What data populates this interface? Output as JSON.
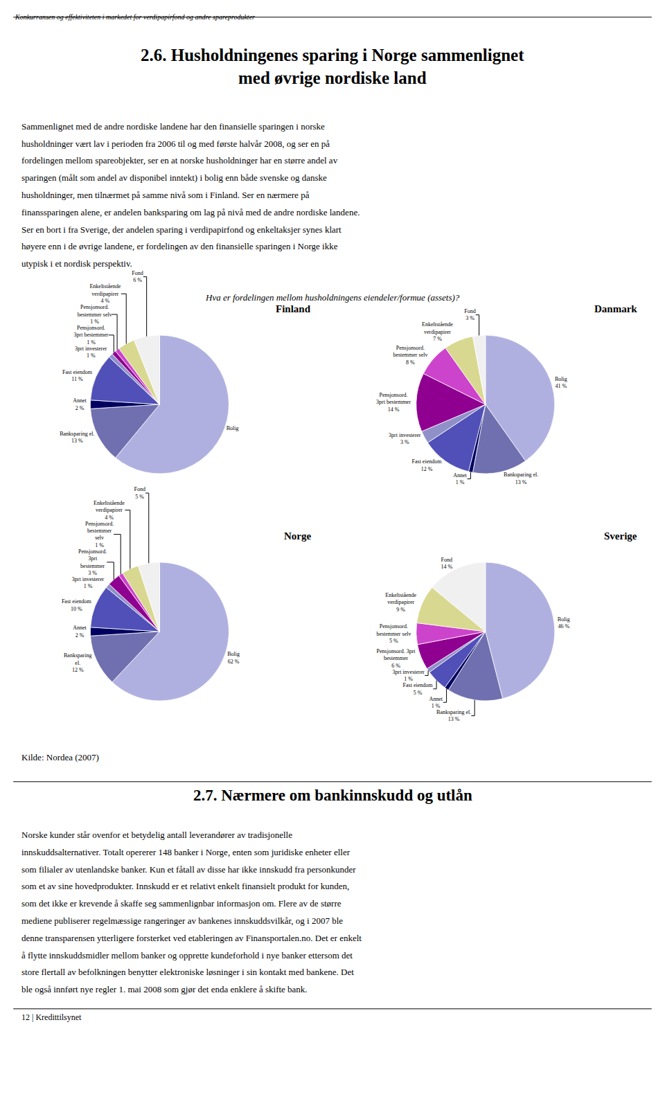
{
  "header": "Konkurransen og effektiviteten i markedet for verdipapirfond og andre spareprodukter",
  "title": "2.6. Husholdningenes sparing i Norge sammenlignet\nmed øvrige nordiske land",
  "body_text": [
    "Sammenlignet med de andre nordiske landene har den finansielle sparingen i norske",
    "husholdninger vært lav i perioden fra 2006 til og med første halvår 2008, og ser en på",
    "fordelingen mellom spareobjekter, ser en at norske husholdninger har en større andel av",
    "sparingen (målt som andel av disponibel inntekt) i bolig enn både svenske og danske",
    "husholdninger, men tilnærmet på samme nivå som i Finland. Ser en nærmere på",
    "finanssparingen alene, er andelen banksparing om lag på nivå med de andre nordiske landene.",
    "Ser en bort i fra Sverige, der andelen sparing i verdipapirfond og enkeltaksjer synes klart",
    "høyere enn i de øvrige landene, er fordelingen av den finansielle sparingen i Norge ikke",
    "utypisk i et nordisk perspektiv."
  ],
  "chart_title": "Hva er fordelingen mellom husholdningens eiendeler/formue (assets)?",
  "chart_data": [
    {
      "type": "pie",
      "title": "Finland",
      "categories": [
        "Bolig",
        "Banksparing el.\n13 %",
        "Annet\n2 %",
        "Fast eiendom\n11 %",
        "3prt investerer\n1 %",
        "Pensjonsord.\n3prt bestemmer\n1 %",
        "Pensjonsord.\nbestemmer selv\n1 %",
        "Enkeltstående\nverdipapirer\n4 %",
        "Fond\n6 %"
      ],
      "values": [
        61,
        13,
        2,
        11,
        1,
        1,
        1,
        4,
        6
      ],
      "colors": [
        "#b0b0e0",
        "#7070b0",
        "#000060",
        "#5050b8",
        "#9090c8",
        "#900090",
        "#cc44cc",
        "#d8d890",
        "#f0f0f0"
      ]
    },
    {
      "type": "pie",
      "title": "Danmark",
      "categories": [
        "Bolig\n41 %",
        "Banksparing el.\n13 %",
        "Annet\n1 %",
        "Fast eiendom\n12 %",
        "3prt investerer\n3 %",
        "Pensjonsord.\n3prt bestemmer\n14 %",
        "Pensjonsord.\nbestemmer selv\n8 %",
        "Enkeltstående\nverdipapirer\n7 %",
        "Fond\n3 %"
      ],
      "values": [
        41,
        13,
        1,
        12,
        3,
        14,
        8,
        7,
        3
      ],
      "colors": [
        "#b0b0e0",
        "#7070b0",
        "#000060",
        "#5050b8",
        "#9090c8",
        "#900090",
        "#cc44cc",
        "#d8d890",
        "#f0f0f0"
      ]
    },
    {
      "type": "pie",
      "title": "Norge",
      "categories": [
        "Bolig\n62 %",
        "Banksparing\nel.\n12 %",
        "Annet\n2 %",
        "Fast eiendom\n10 %",
        "3prt investerer\n1 %",
        "Pensjonsord.\n3prt\nbestemmer\n3 %",
        "Pensjonsord.\nbestemmer\nselv\n1 %",
        "Enkeltstående\nverdipapirer\n4 %",
        "Fond\n5 %"
      ],
      "values": [
        62,
        12,
        2,
        10,
        1,
        3,
        1,
        4,
        5
      ],
      "colors": [
        "#b0b0e0",
        "#7070b0",
        "#000060",
        "#5050b8",
        "#9090c8",
        "#900090",
        "#cc44cc",
        "#d8d890",
        "#f0f0f0"
      ]
    },
    {
      "type": "pie",
      "title": "Sverige",
      "categories": [
        "Bolig\n46 %",
        "Banksparing el.\n13 %",
        "Annet\n1 %",
        "Fast eiendom\n5 %",
        "3prt investerer\n1 %",
        "Pensjonsord. 3prt\nbestemmer\n6 %",
        "Pensjonsord.\nbestemmer selv\n5 %",
        "Enkeltstående\nverdipapirer\n9 %",
        "Fond\n14 %"
      ],
      "values": [
        46,
        13,
        1,
        5,
        1,
        6,
        5,
        9,
        14
      ],
      "colors": [
        "#b0b0e0",
        "#7070b0",
        "#000060",
        "#5050b8",
        "#9090c8",
        "#900090",
        "#cc44cc",
        "#d8d890",
        "#f0f0f0"
      ]
    }
  ],
  "footer": "Kilde: Nordea (2007)",
  "section_header": "2.7. Nærmere om bankinnskudd og utlån",
  "section_text": [
    "Norske kunder står ovenfor et betydelig antall leverandører av tradisjonelle",
    "innskuddsalternativer. Totalt opererer 148 banker i Norge, enten som juridiske enheter eller",
    "som filialer av utenlandske banker. Kun et fåtall av disse har ikke innskudd fra personkunder",
    "som et av sine hovedprodukter. Innskudd er et relativt enkelt finansielt produkt for kunden,",
    "som det ikke er krevende å skaffe seg sammenlignbar informasjon om. Flere av de større",
    "mediene publiserer regelmæssige rangeringer av bankenes innskuddsvilkår, og i 2007 ble",
    "denne transparensen ytterligere forsterket ved etableringen av Finansportalen.no. Det er enkelt",
    "å flytte innskuddsmidler mellom banker og opprette kundeforhold i nye banker ettersom det",
    "store flertall av befolkningen benytter elektroniske løsninger i sin kontakt med bankene. Det",
    "ble også innført nye regler 1. mai 2008 som gjør det enda enklere å skifte bank."
  ],
  "page_number": "12 | Kredittilsynet"
}
